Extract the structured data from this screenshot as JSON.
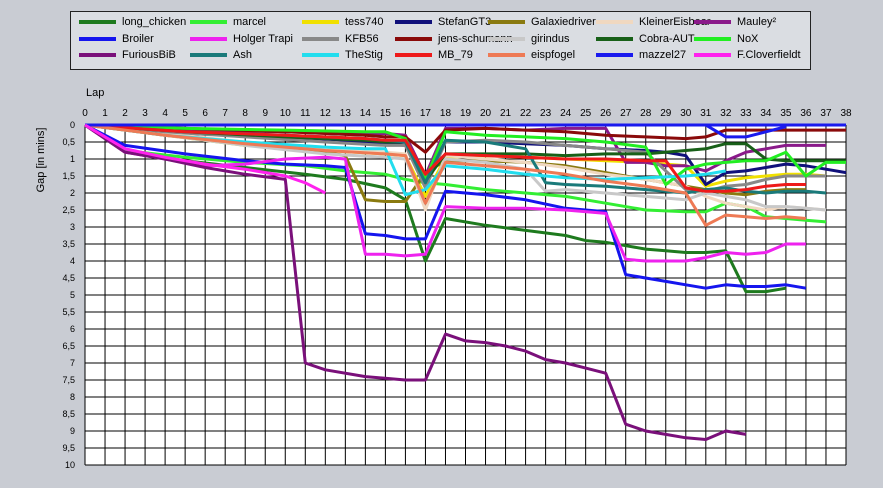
{
  "chart_data": {
    "type": "line",
    "xlabel": "Lap",
    "ylabel": "Gap [in mins]",
    "x_ticks": [
      0,
      1,
      2,
      3,
      4,
      5,
      6,
      7,
      8,
      9,
      10,
      11,
      12,
      13,
      14,
      15,
      16,
      17,
      18,
      19,
      20,
      21,
      22,
      23,
      24,
      25,
      26,
      27,
      28,
      29,
      30,
      31,
      32,
      33,
      34,
      35,
      36,
      37,
      38
    ],
    "y_ticks": [
      "0",
      "0,5",
      "1",
      "1,5",
      "2",
      "2,5",
      "3",
      "3,5",
      "4",
      "4,5",
      "5",
      "5,5",
      "6",
      "6,5",
      "7",
      "7,5",
      "8",
      "8,5",
      "9",
      "9,5",
      "10"
    ],
    "xlim": [
      0,
      38
    ],
    "ylim": [
      0,
      10
    ],
    "y_inverted": true,
    "grid": true,
    "legend_position": "top",
    "series": [
      {
        "name": "long_chicken",
        "color": "#1e7a1e",
        "x": [
          0,
          2,
          5,
          8,
          11,
          13,
          15,
          16,
          17,
          18,
          20,
          22,
          24,
          25,
          26,
          27,
          28,
          29,
          30,
          31,
          32,
          33,
          34,
          35
        ],
        "y": [
          0,
          0.8,
          1.05,
          1.25,
          1.45,
          1.6,
          1.85,
          2.2,
          4,
          2.75,
          2.95,
          3.1,
          3.25,
          3.4,
          3.45,
          3.55,
          3.65,
          3.7,
          3.75,
          3.75,
          3.7,
          4.9,
          4.9,
          4.8
        ]
      },
      {
        "name": "marcel",
        "color": "#33ee33",
        "x": [
          0,
          2,
          5,
          8,
          11,
          13,
          15,
          16,
          17,
          18,
          20,
          22,
          24,
          26,
          28,
          30,
          31,
          32,
          33,
          34,
          35,
          36,
          37
        ],
        "y": [
          0,
          0.75,
          0.95,
          1.1,
          1.2,
          1.35,
          1.45,
          1.6,
          1.7,
          1.75,
          1.9,
          2.0,
          2.1,
          2.3,
          2.5,
          2.55,
          2.55,
          2.3,
          2.4,
          2.7,
          2.75,
          2.8,
          2.85
        ]
      },
      {
        "name": "tess740",
        "color": "#f0e000",
        "x": [
          0,
          4,
          8,
          12,
          15,
          16,
          17,
          18,
          20,
          22,
          24,
          26,
          28,
          30,
          31,
          32,
          33,
          34,
          35,
          36,
          37
        ],
        "y": [
          0,
          0.3,
          0.6,
          0.75,
          0.85,
          0.9,
          2.1,
          0.95,
          0.9,
          0.95,
          1.0,
          1.05,
          1.1,
          1.2,
          1.8,
          1.65,
          1.55,
          1.5,
          1.45,
          1.45,
          1.5
        ]
      },
      {
        "name": "StefanGT3",
        "color": "#10107a",
        "x": [
          0,
          5,
          10,
          13,
          15,
          16,
          17,
          18,
          20,
          22,
          24,
          26,
          28,
          29,
          30,
          31,
          32,
          33,
          34,
          35,
          36,
          37,
          38
        ],
        "y": [
          0,
          0.25,
          0.35,
          0.45,
          0.55,
          0.6,
          1.45,
          0.5,
          0.5,
          0.55,
          0.6,
          0.7,
          0.75,
          0.8,
          0.9,
          1.75,
          1.4,
          1.35,
          1.25,
          1.15,
          1.2,
          1.3,
          1.4
        ]
      },
      {
        "name": "Galaxiedriver",
        "color": "#8a7a10",
        "x": [
          0,
          4,
          8,
          12,
          13,
          14,
          15,
          16,
          17,
          18,
          20,
          22,
          24,
          26,
          28,
          30,
          31,
          32,
          33,
          34,
          35,
          36
        ],
        "y": [
          0,
          0.3,
          0.55,
          0.8,
          0.9,
          2.2,
          2.25,
          2.25,
          1.4,
          1.05,
          1.05,
          1.1,
          1.2,
          1.4,
          1.6,
          1.8,
          1.9,
          2.0,
          2.05,
          1.95,
          1.9,
          1.9
        ]
      },
      {
        "name": "KleinerEisbear",
        "color": "#f0d8c0",
        "x": [
          0,
          4,
          8,
          12,
          15,
          16,
          17,
          18,
          20,
          22,
          24,
          26,
          28,
          30,
          31,
          32,
          33,
          34,
          35,
          36,
          37
        ],
        "y": [
          0,
          0.25,
          0.5,
          0.7,
          0.8,
          0.85,
          2.5,
          0.9,
          1.0,
          1.1,
          1.25,
          1.45,
          1.6,
          1.8,
          2.1,
          2.3,
          2.4,
          2.5,
          2.4,
          2.45,
          2.5
        ]
      },
      {
        "name": "Mauley²",
        "color": "#8a1a8a",
        "x": [
          0,
          5,
          10,
          14,
          15,
          16,
          17,
          18,
          20,
          22,
          24,
          25,
          26,
          27,
          28,
          29,
          30,
          31,
          32,
          33,
          34,
          35,
          36,
          37
        ],
        "y": [
          0,
          0.15,
          0.2,
          0.25,
          0.25,
          0.3,
          1.5,
          0.1,
          0.1,
          0.15,
          0.1,
          0.1,
          0.1,
          1.1,
          1.1,
          1.2,
          1.2,
          1.35,
          1.05,
          0.8,
          0.7,
          0.6,
          0.6,
          0.6
        ]
      },
      {
        "name": "Broiler",
        "color": "#1515ee",
        "x": [
          0,
          2,
          5,
          8,
          10,
          12,
          13,
          14,
          15,
          16,
          17,
          18,
          20,
          22,
          24,
          26,
          27,
          28,
          29,
          30,
          31,
          32,
          33,
          34,
          35,
          36
        ],
        "y": [
          0,
          0.6,
          0.85,
          1.05,
          1.15,
          1.2,
          1.25,
          3.2,
          3.25,
          3.35,
          3.35,
          1.95,
          2.05,
          2.2,
          2.45,
          2.55,
          4.4,
          4.5,
          4.6,
          4.7,
          4.8,
          4.7,
          4.75,
          4.75,
          4.7,
          4.8
        ]
      },
      {
        "name": "Holger Trapi",
        "color": "#ee22ee",
        "x": [
          0,
          2,
          4,
          6,
          8,
          10,
          12,
          13,
          14,
          15,
          16,
          17,
          18,
          20,
          22,
          24,
          26,
          27,
          28,
          29,
          30,
          31,
          32,
          33,
          34,
          35,
          36
        ],
        "y": [
          0,
          0.8,
          1.0,
          1.2,
          1.15,
          1.0,
          0.95,
          1.0,
          3.8,
          3.8,
          3.85,
          3.8,
          2.4,
          2.45,
          2.45,
          2.5,
          2.6,
          3.95,
          4.0,
          4.0,
          4.0,
          3.9,
          3.75,
          3.8,
          3.75,
          3.5,
          3.5
        ]
      },
      {
        "name": "KFB56",
        "color": "#888888",
        "x": [
          0,
          4,
          8,
          12,
          15,
          16,
          17,
          18,
          20,
          22,
          24,
          26,
          28,
          30,
          31,
          32,
          33,
          34,
          35,
          36,
          37
        ],
        "y": [
          0,
          0.2,
          0.35,
          0.5,
          0.6,
          0.6,
          1.85,
          0.5,
          0.45,
          0.5,
          0.6,
          0.7,
          0.8,
          1.9,
          1.95,
          1.8,
          1.75,
          1.6,
          1.5,
          1.5,
          1.5
        ]
      },
      {
        "name": "jens-schumann",
        "color": "#8a0a0a",
        "x": [
          0,
          5,
          10,
          14,
          15,
          16,
          17,
          18,
          20,
          22,
          24,
          26,
          28,
          30,
          31,
          32,
          33,
          34,
          35,
          36,
          37,
          38
        ],
        "y": [
          0,
          0.1,
          0.2,
          0.3,
          0.35,
          0.35,
          0.8,
          0.15,
          0.1,
          0.15,
          0.2,
          0.3,
          0.35,
          0.4,
          0.35,
          0.15,
          0.15,
          0.15,
          0.15,
          0.15,
          0.15,
          0.15
        ]
      },
      {
        "name": "girindus",
        "color": "#c8c8c8",
        "x": [
          0,
          4,
          8,
          12,
          15,
          16,
          17,
          18,
          20,
          22,
          23,
          24,
          26,
          28,
          30,
          31,
          32,
          33,
          34,
          35,
          36,
          37
        ],
        "y": [
          0,
          0.3,
          0.6,
          0.85,
          0.95,
          1.0,
          2.3,
          1.0,
          1.1,
          1.3,
          1.95,
          1.9,
          2.0,
          2.1,
          2.2,
          2.0,
          2.1,
          2.2,
          2.4,
          2.4,
          2.45,
          2.5
        ]
      },
      {
        "name": "Cobra-AUT",
        "color": "#186018",
        "x": [
          0,
          5,
          10,
          14,
          15,
          16,
          17,
          18,
          20,
          22,
          24,
          26,
          28,
          30,
          31,
          32,
          33,
          34,
          35,
          36,
          37,
          38
        ],
        "y": [
          0,
          0.2,
          0.35,
          0.45,
          0.5,
          0.5,
          1.65,
          0.85,
          0.85,
          0.85,
          0.9,
          0.85,
          0.85,
          0.75,
          0.7,
          0.55,
          0.55,
          1.0,
          1.05,
          1.05,
          1.05,
          1.05
        ]
      },
      {
        "name": "NoX",
        "color": "#22ee22",
        "x": [
          0,
          5,
          10,
          14,
          15,
          16,
          17,
          18,
          20,
          22,
          24,
          26,
          28,
          29,
          30,
          31,
          32,
          33,
          34,
          35,
          36,
          37,
          38
        ],
        "y": [
          0,
          0.1,
          0.15,
          0.2,
          0.2,
          0.4,
          1.6,
          0.2,
          0.3,
          0.35,
          0.4,
          0.5,
          0.65,
          1.75,
          1.3,
          1.15,
          1.1,
          1.05,
          1.05,
          0.8,
          1.5,
          1.1,
          1.1
        ]
      },
      {
        "name": "FuriousBiB",
        "color": "#7a107a",
        "x": [
          0,
          2,
          4,
          6,
          8,
          10,
          11,
          12,
          14,
          16,
          17,
          18,
          19,
          20,
          21,
          22,
          23,
          24,
          25,
          26,
          27,
          28,
          29,
          30,
          31,
          32,
          33
        ],
        "y": [
          0,
          0.8,
          1.0,
          1.25,
          1.45,
          1.6,
          7.0,
          7.2,
          7.4,
          7.5,
          7.5,
          6.15,
          6.35,
          6.4,
          6.5,
          6.65,
          6.9,
          7.0,
          7.15,
          7.3,
          8.8,
          9.0,
          9.1,
          9.2,
          9.25,
          9.0,
          9.1
        ]
      },
      {
        "name": "Ash",
        "color": "#1a7a7a",
        "x": [
          0,
          5,
          10,
          14,
          15,
          16,
          17,
          18,
          20,
          22,
          23,
          24,
          26,
          28,
          30,
          31,
          32,
          33,
          34,
          35,
          36,
          37
        ],
        "y": [
          0,
          0.2,
          0.3,
          0.4,
          0.45,
          0.5,
          1.7,
          0.45,
          0.5,
          0.7,
          1.7,
          1.75,
          1.8,
          1.9,
          2.0,
          1.9,
          1.85,
          1.95,
          2.0,
          1.95,
          1.95,
          2.0
        ]
      },
      {
        "name": "TheStig",
        "color": "#22ddee",
        "x": [
          0,
          4,
          8,
          12,
          14,
          15,
          16,
          17,
          18,
          20,
          22,
          24,
          26,
          28,
          30,
          31,
          32
        ],
        "y": [
          0,
          0.3,
          0.5,
          0.65,
          0.7,
          0.7,
          2.05,
          1.9,
          1.2,
          1.3,
          1.45,
          1.55,
          1.6,
          1.55,
          1.5,
          1.45,
          1.35
        ]
      },
      {
        "name": "MB_79",
        "color": "#ee1a1a",
        "x": [
          0,
          5,
          10,
          14,
          15,
          16,
          17,
          18,
          20,
          22,
          24,
          26,
          28,
          29,
          30,
          31,
          32,
          33,
          34,
          35,
          36
        ],
        "y": [
          0,
          0.2,
          0.3,
          0.4,
          0.45,
          0.45,
          1.45,
          0.85,
          0.9,
          0.95,
          1.0,
          1.0,
          1.05,
          1.05,
          1.85,
          1.95,
          1.95,
          1.9,
          1.8,
          1.75,
          1.75
        ]
      },
      {
        "name": "eispfogel",
        "color": "#ee7a55",
        "x": [
          0,
          4,
          8,
          12,
          15,
          16,
          17,
          18,
          20,
          22,
          24,
          26,
          28,
          29,
          30,
          31,
          32,
          33,
          34,
          35,
          36
        ],
        "y": [
          0,
          0.3,
          0.55,
          0.75,
          0.85,
          0.9,
          2.3,
          1.1,
          1.2,
          1.3,
          1.45,
          1.65,
          1.8,
          1.9,
          2.0,
          2.95,
          2.65,
          2.7,
          2.75,
          2.7,
          2.75
        ]
      },
      {
        "name": "mazzel27",
        "color": "#1a1aee",
        "x": [
          0,
          10,
          20,
          30,
          31,
          32,
          33,
          34,
          35
        ],
        "y": [
          0,
          0,
          0,
          0,
          0,
          0.35,
          0.35,
          0.2,
          0.05
        ]
      },
      {
        "name": "F.Cloverfieldt",
        "color": "#ff22ee",
        "x": [
          0,
          2,
          4,
          6,
          8,
          10,
          11,
          12
        ],
        "y": [
          0,
          0.7,
          0.95,
          1.15,
          1.3,
          1.5,
          1.7,
          2.0
        ]
      }
    ]
  }
}
